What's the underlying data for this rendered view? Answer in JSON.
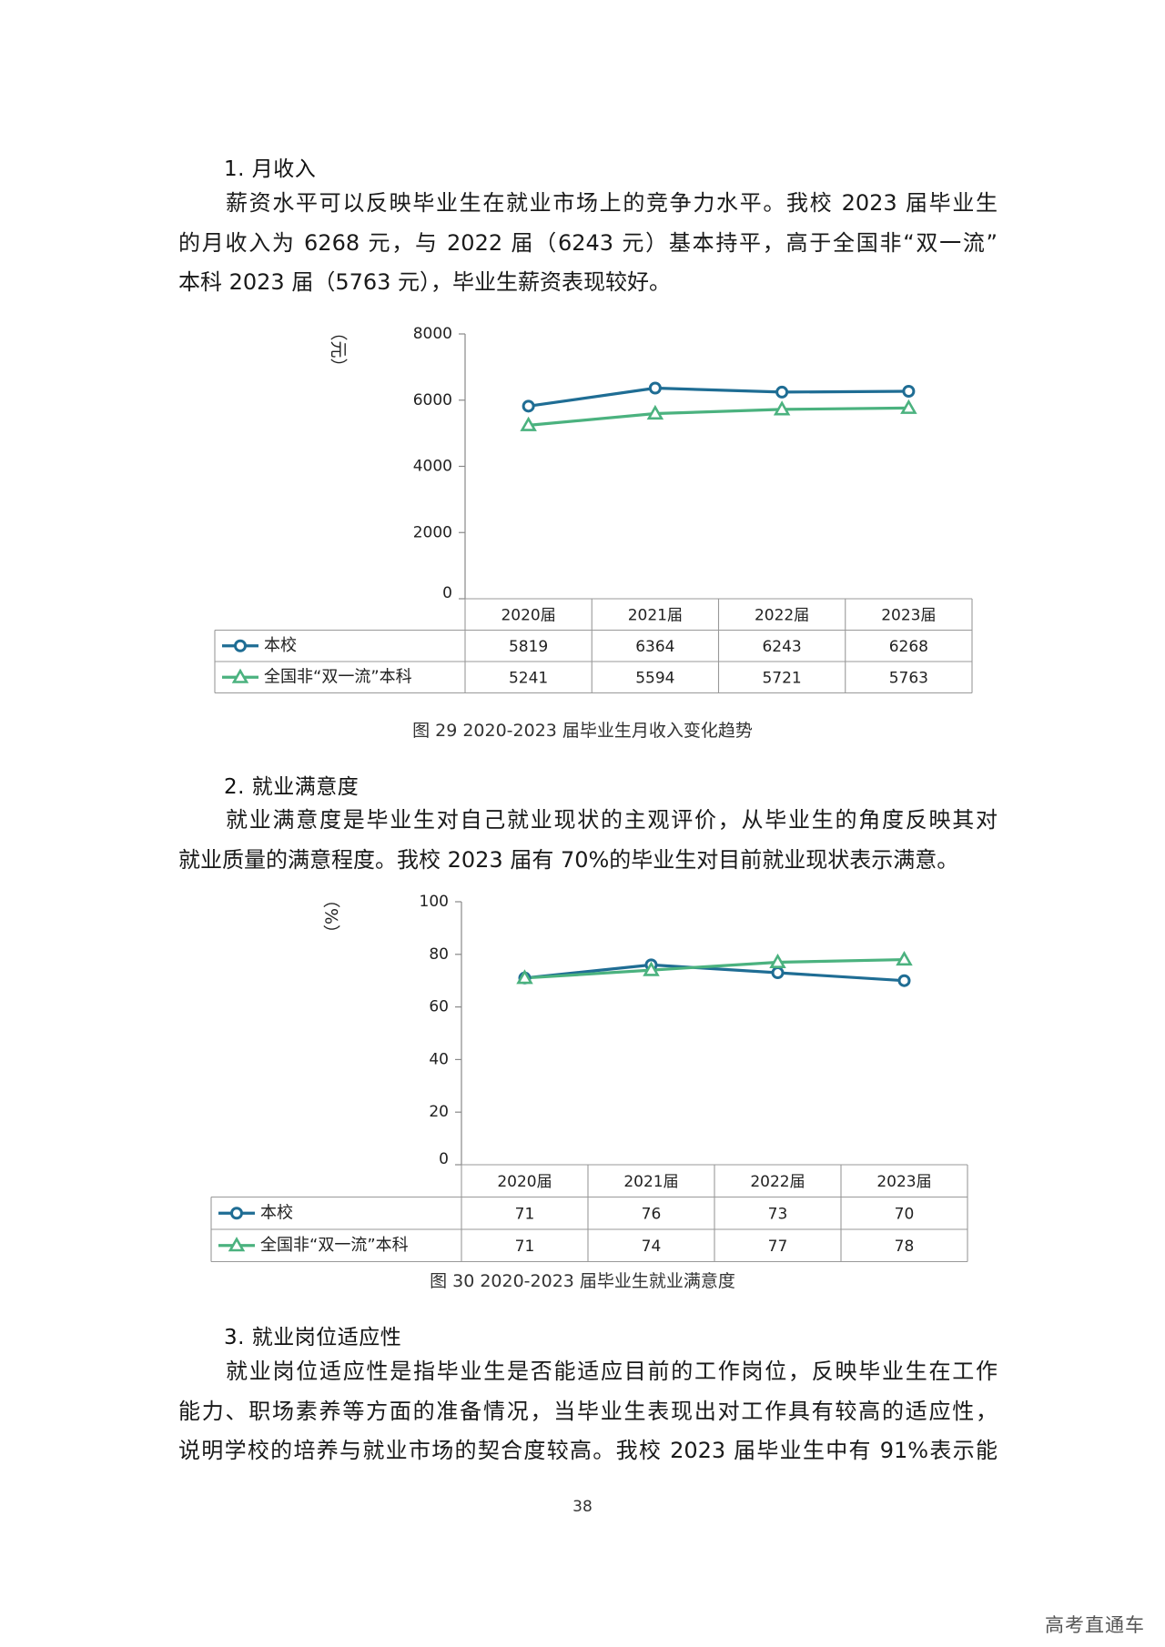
{
  "section1": {
    "heading": "1. 月收入",
    "lines": [
      "薪资水平可以反映毕业生在就业市场上的竞争力水平。我校 2023 届毕业生",
      "的月收入为 6268 元，与 2022 届（6243 元）基本持平，高于全国非“双一流”",
      "本科 2023 届（5763 元），毕业生薪资表现较好。"
    ]
  },
  "chart1": {
    "unit_label": "（元）",
    "caption": "图 29    2020-2023 届毕业生月收入变化趋势"
  },
  "section2": {
    "heading": "2. 就业满意度",
    "lines": [
      "就业满意度是毕业生对自己就业现状的主观评价，从毕业生的角度反映其对",
      "就业质量的满意程度。我校 2023 届有 70%的毕业生对目前就业现状表示满意。"
    ]
  },
  "chart2": {
    "unit_label": "（%）",
    "caption": "图 30    2020-2023 届毕业生就业满意度"
  },
  "section3": {
    "heading": "3. 就业岗位适应性",
    "lines": [
      "就业岗位适应性是指毕业生是否能适应目前的工作岗位，反映毕业生在工作",
      "能力、职场素养等方面的准备情况，当毕业生表现出对工作具有较高的适应性，",
      "说明学校的培养与就业市场的契合度较高。我校 2023 届毕业生中有 91%表示能"
    ]
  },
  "colors": {
    "school": "#1f6d94",
    "national": "#4bb27f"
  },
  "chart_data": [
    {
      "type": "line",
      "ylabel": "（元）",
      "ylim": [
        0,
        8000
      ],
      "yticks": [
        0,
        2000,
        4000,
        6000,
        8000
      ],
      "categories": [
        "2020届",
        "2021届",
        "2022届",
        "2023届"
      ],
      "series": [
        {
          "name": "本校",
          "values": [
            5819,
            6364,
            6243,
            6268
          ],
          "marker": "circle",
          "color": "#1f6d94"
        },
        {
          "name": "全国非“双一流”本科",
          "values": [
            5241,
            5594,
            5721,
            5763
          ],
          "marker": "triangle",
          "color": "#4bb27f"
        }
      ],
      "data_table": true,
      "grid": false
    },
    {
      "type": "line",
      "ylabel": "（%）",
      "ylim": [
        0,
        100
      ],
      "yticks": [
        0,
        20,
        40,
        60,
        80,
        100
      ],
      "categories": [
        "2020届",
        "2021届",
        "2022届",
        "2023届"
      ],
      "series": [
        {
          "name": "本校",
          "values": [
            71,
            76,
            73,
            70
          ],
          "marker": "circle",
          "color": "#1f6d94"
        },
        {
          "name": "全国非“双一流”本科",
          "values": [
            71,
            74,
            77,
            78
          ],
          "marker": "triangle",
          "color": "#4bb27f"
        }
      ],
      "data_table": true,
      "grid": false
    }
  ],
  "page_number": "38",
  "watermark": "高考直通车"
}
